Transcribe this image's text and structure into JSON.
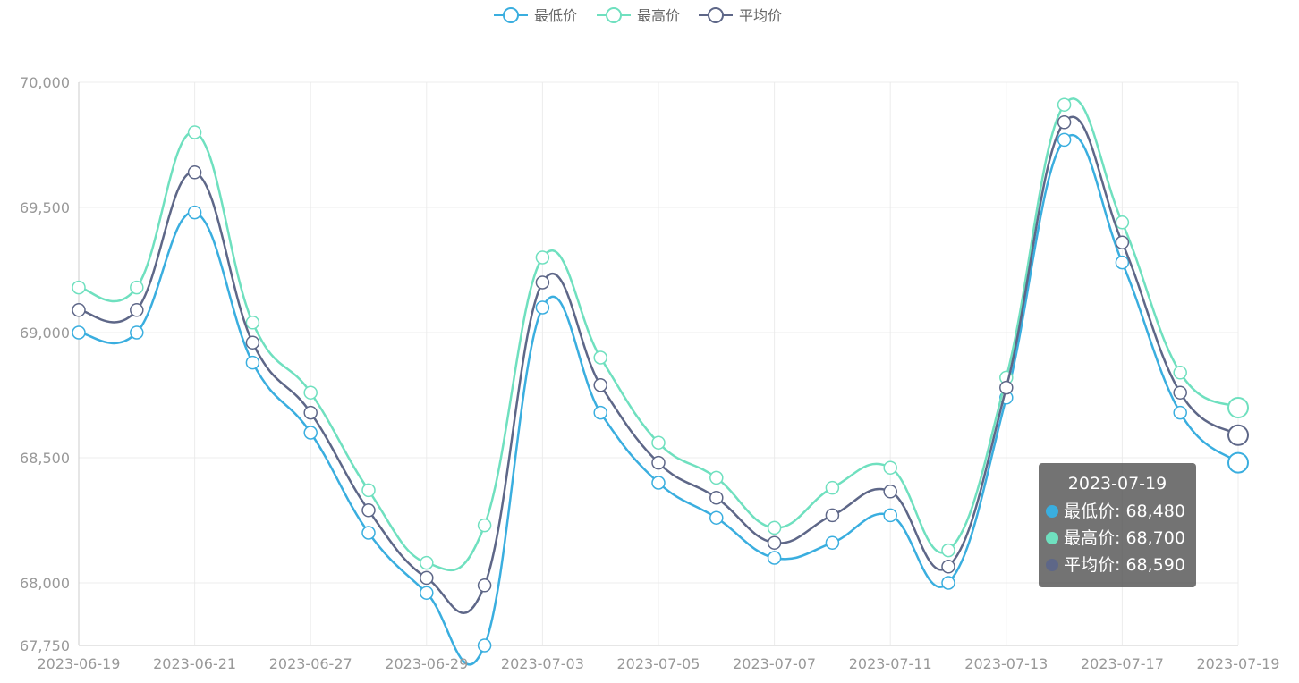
{
  "colors": {
    "low": "#3aaedf",
    "high": "#6fe0bf",
    "avg": "#5e6788",
    "grid": "#ececec",
    "axis": "#cccccc"
  },
  "legend": {
    "items": [
      "最低价",
      "最高价",
      "平均价"
    ]
  },
  "chart_data": {
    "type": "line",
    "smooth": true,
    "x": [
      "2023-06-19",
      "2023-06-20",
      "2023-06-21",
      "2023-06-26",
      "2023-06-27",
      "2023-06-28",
      "2023-06-29",
      "2023-06-30",
      "2023-07-03",
      "2023-07-04",
      "2023-07-05",
      "2023-07-06",
      "2023-07-07",
      "2023-07-10",
      "2023-07-11",
      "2023-07-12",
      "2023-07-13",
      "2023-07-14",
      "2023-07-17",
      "2023-07-18",
      "2023-07-19"
    ],
    "x_tick_labels": [
      "2023-06-19",
      "2023-06-21",
      "2023-06-27",
      "2023-06-29",
      "2023-07-03",
      "2023-07-05",
      "2023-07-07",
      "2023-07-11",
      "2023-07-13",
      "2023-07-17",
      "2023-07-19"
    ],
    "y_ticks": [
      "67,750",
      "68,000",
      "68,500",
      "69,000",
      "69,500",
      "70,000"
    ],
    "y_tick_values": [
      67750,
      68000,
      68500,
      69000,
      69500,
      70000
    ],
    "ylim": [
      67750,
      70000
    ],
    "grid": true,
    "legend_position": "top-center",
    "series": [
      {
        "name": "最低价",
        "values": [
          69000,
          69000,
          69480,
          68880,
          68600,
          68200,
          67960,
          67750,
          69100,
          68680,
          68400,
          68260,
          68100,
          68160,
          68270,
          68000,
          68740,
          69770,
          69280,
          68680,
          68480
        ]
      },
      {
        "name": "最高价",
        "values": [
          69180,
          69180,
          69800,
          69040,
          68760,
          68370,
          68080,
          68230,
          69300,
          68900,
          68560,
          68420,
          68220,
          68380,
          68460,
          68130,
          68820,
          69910,
          69440,
          68840,
          68700
        ]
      },
      {
        "name": "平均价",
        "values": [
          69090,
          69090,
          69640,
          68960,
          68680,
          68290,
          68020,
          67990,
          69200,
          68790,
          68480,
          68340,
          68160,
          68270,
          68365,
          68065,
          68780,
          69840,
          69360,
          68760,
          68590
        ]
      }
    ]
  },
  "tooltip": {
    "title": "2023-07-19",
    "rows": [
      "最低价: 68,480",
      "最高价: 68,700",
      "平均价: 68,590"
    ]
  }
}
